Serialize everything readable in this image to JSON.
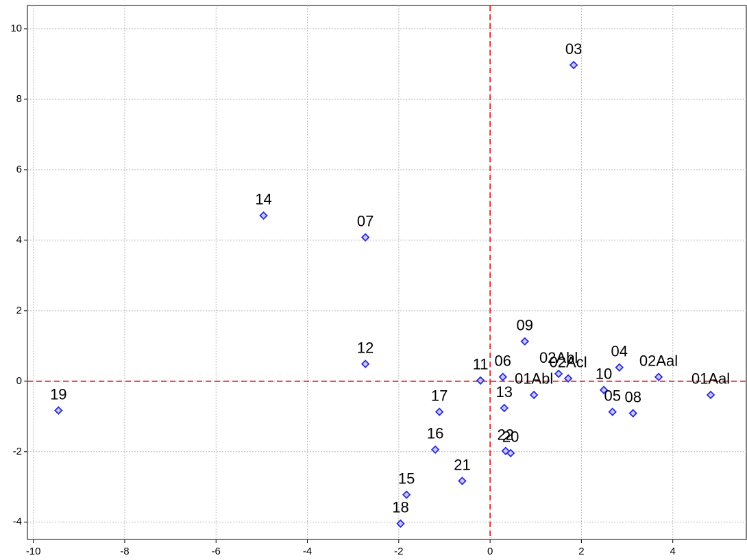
{
  "chart_data": {
    "type": "scatter",
    "x": [
      1.83,
      -4.96,
      -2.73,
      -2.73,
      -9.45,
      0.76,
      -0.21,
      0.28,
      1.5,
      1.71,
      0.96,
      2.83,
      3.69,
      4.83,
      2.49,
      2.68,
      3.13,
      0.31,
      -1.11,
      -1.2,
      0.34,
      0.45,
      -0.61,
      -1.83,
      -1.96
    ],
    "series": [
      {
        "color": "#2b2bd9",
        "values": [
          8.97,
          4.7,
          4.08,
          0.49,
          -0.83,
          1.13,
          0.02,
          0.12,
          0.21,
          0.08,
          -0.39,
          0.39,
          0.12,
          -0.39,
          -0.25,
          -0.87,
          -0.91,
          -0.76,
          -0.87,
          -1.94,
          -1.98,
          -2.04,
          -2.83,
          -3.22,
          -4.04
        ],
        "point_labels": [
          "03",
          "14",
          "07",
          "12",
          "19",
          "09",
          "11",
          "06",
          "02Abl",
          "02Acl",
          "01Abl",
          "04",
          "02Aal",
          "01Aal",
          "10",
          "05",
          "08",
          "13",
          "17",
          "16",
          "22",
          "20",
          "21",
          "15",
          "18"
        ]
      }
    ],
    "xlim": [
      -10.13,
      5.61
    ],
    "ylim": [
      -4.49,
      10.66
    ],
    "xticks": [
      -10,
      -8,
      -6,
      -4,
      -2,
      0,
      2,
      4
    ],
    "yticks": [
      -4,
      -2,
      0,
      2,
      4,
      6,
      8,
      10
    ],
    "grid": true,
    "reference_lines": {
      "x": 0,
      "y": 0,
      "color": "#e00000"
    }
  }
}
